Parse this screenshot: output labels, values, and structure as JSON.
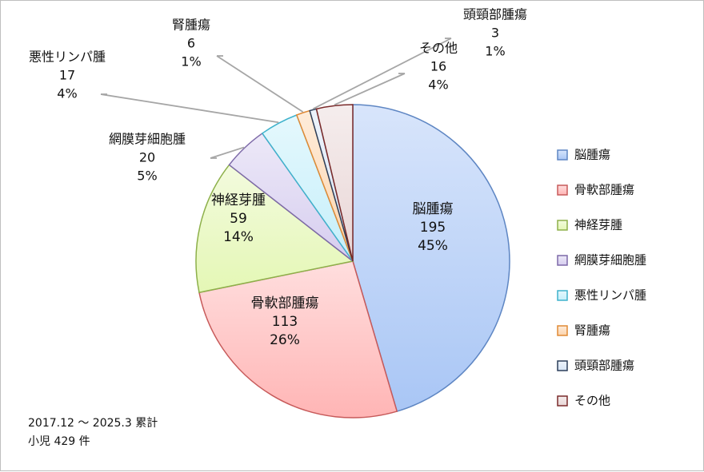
{
  "chart_data": {
    "type": "pie",
    "title": "",
    "slices": [
      {
        "label": "脳腫瘍",
        "value": 195,
        "percent": "45%",
        "color": "#a9c6f5",
        "edge": "#5e86c3"
      },
      {
        "label": "骨軟部腫瘍",
        "value": 113,
        "percent": "26%",
        "color": "#ffb5b5",
        "edge": "#c75a5a"
      },
      {
        "label": "神経芽腫",
        "value": 59,
        "percent": "14%",
        "color": "#e4f7b5",
        "edge": "#8db04a"
      },
      {
        "label": "網膜芽細胞腫",
        "value": 20,
        "percent": "5%",
        "color": "#d6cdef",
        "edge": "#7d69a8"
      },
      {
        "label": "悪性リンパ腫",
        "value": 17,
        "percent": "4%",
        "color": "#c5effa",
        "edge": "#3fb2cc"
      },
      {
        "label": "腎腫瘍",
        "value": 6,
        "percent": "1%",
        "color": "#fcd4ad",
        "edge": "#e08a35"
      },
      {
        "label": "頭頸部腫瘍",
        "value": 3,
        "percent": "1%",
        "color": "#d6e4f5",
        "edge": "#2c3e5a"
      },
      {
        "label": "その他",
        "value": 16,
        "percent": "4%",
        "color": "#e9d6d6",
        "edge": "#7a2a2a"
      }
    ],
    "legend_position": "right"
  },
  "note": {
    "period": "2017.12 ～ 2025.3 累計",
    "total": "小児 429 件"
  }
}
